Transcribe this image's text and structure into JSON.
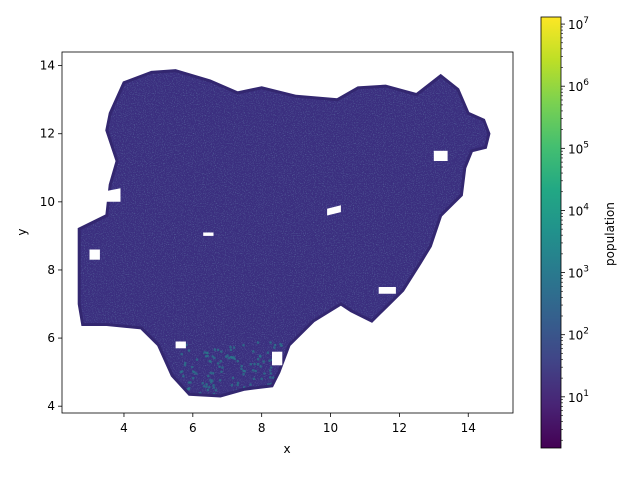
{
  "chart_data": {
    "type": "scatter",
    "title": "",
    "xlabel": "x",
    "ylabel": "y",
    "xlim": [
      2.2,
      15.3
    ],
    "ylim": [
      3.8,
      14.4
    ],
    "xticks": [
      4,
      6,
      8,
      10,
      12,
      14
    ],
    "yticks": [
      4,
      6,
      8,
      10,
      12,
      14
    ],
    "grid": false,
    "region_outline": [
      [
        5.5,
        13.85
      ],
      [
        6.5,
        13.55
      ],
      [
        7.3,
        13.2
      ],
      [
        8.0,
        13.35
      ],
      [
        9.0,
        13.1
      ],
      [
        10.2,
        13.0
      ],
      [
        10.8,
        13.35
      ],
      [
        11.6,
        13.4
      ],
      [
        12.5,
        13.15
      ],
      [
        13.2,
        13.7
      ],
      [
        13.7,
        13.3
      ],
      [
        14.0,
        12.6
      ],
      [
        14.45,
        12.4
      ],
      [
        14.6,
        12.0
      ],
      [
        14.5,
        11.6
      ],
      [
        14.1,
        11.5
      ],
      [
        13.9,
        11.0
      ],
      [
        13.8,
        10.2
      ],
      [
        13.2,
        9.6
      ],
      [
        12.9,
        8.7
      ],
      [
        12.6,
        8.2
      ],
      [
        12.1,
        7.4
      ],
      [
        11.6,
        6.9
      ],
      [
        11.2,
        6.5
      ],
      [
        10.6,
        6.8
      ],
      [
        10.3,
        7.0
      ],
      [
        9.5,
        6.5
      ],
      [
        8.8,
        5.8
      ],
      [
        8.5,
        5.0
      ],
      [
        8.3,
        4.6
      ],
      [
        7.5,
        4.5
      ],
      [
        6.8,
        4.3
      ],
      [
        5.9,
        4.35
      ],
      [
        5.4,
        4.9
      ],
      [
        5.0,
        5.8
      ],
      [
        4.5,
        6.3
      ],
      [
        3.5,
        6.4
      ],
      [
        2.8,
        6.4
      ],
      [
        2.7,
        7.0
      ],
      [
        2.7,
        8.0
      ],
      [
        2.7,
        9.2
      ],
      [
        3.5,
        9.6
      ],
      [
        3.6,
        10.5
      ],
      [
        3.8,
        11.2
      ],
      [
        3.5,
        12.1
      ],
      [
        3.6,
        12.6
      ],
      [
        4.0,
        13.5
      ],
      [
        4.8,
        13.8
      ]
    ],
    "holes": [
      [
        [
          9.9,
          9.8
        ],
        [
          10.3,
          9.9
        ],
        [
          10.3,
          9.7
        ],
        [
          9.9,
          9.6
        ]
      ],
      [
        [
          6.3,
          9.1
        ],
        [
          6.6,
          9.1
        ],
        [
          6.6,
          9.0
        ],
        [
          6.3,
          9.0
        ]
      ],
      [
        [
          3.4,
          10.3
        ],
        [
          3.9,
          10.4
        ],
        [
          3.9,
          10.0
        ],
        [
          3.4,
          10.0
        ]
      ],
      [
        [
          3.0,
          8.6
        ],
        [
          3.3,
          8.6
        ],
        [
          3.3,
          8.3
        ],
        [
          3.0,
          8.3
        ]
      ],
      [
        [
          8.3,
          5.6
        ],
        [
          8.6,
          5.6
        ],
        [
          8.6,
          5.2
        ],
        [
          8.3,
          5.2
        ]
      ],
      [
        [
          11.4,
          7.5
        ],
        [
          11.9,
          7.5
        ],
        [
          11.9,
          7.3
        ],
        [
          11.4,
          7.3
        ]
      ],
      [
        [
          13.0,
          11.5
        ],
        [
          13.4,
          11.5
        ],
        [
          13.4,
          11.2
        ],
        [
          13.0,
          11.2
        ]
      ],
      [
        [
          5.5,
          5.9
        ],
        [
          5.8,
          5.9
        ],
        [
          5.8,
          5.7
        ],
        [
          5.5,
          5.7
        ]
      ]
    ],
    "colorbar": {
      "label": "population",
      "scale": "log",
      "colormap": "viridis",
      "range": [
        1.5,
        13000000
      ],
      "ticks": [
        {
          "value": 10,
          "base": "10",
          "exp": "1"
        },
        {
          "value": 100,
          "base": "10",
          "exp": "2"
        },
        {
          "value": 1000,
          "base": "10",
          "exp": "3"
        },
        {
          "value": 10000,
          "base": "10",
          "exp": "4"
        },
        {
          "value": 100000,
          "base": "10",
          "exp": "5"
        },
        {
          "value": 1000000,
          "base": "10",
          "exp": "6"
        },
        {
          "value": 10000000,
          "base": "10",
          "exp": "7"
        }
      ]
    },
    "point_color_dominant": "#3b2f7f",
    "point_color_highlight": "#2a7a8c"
  }
}
